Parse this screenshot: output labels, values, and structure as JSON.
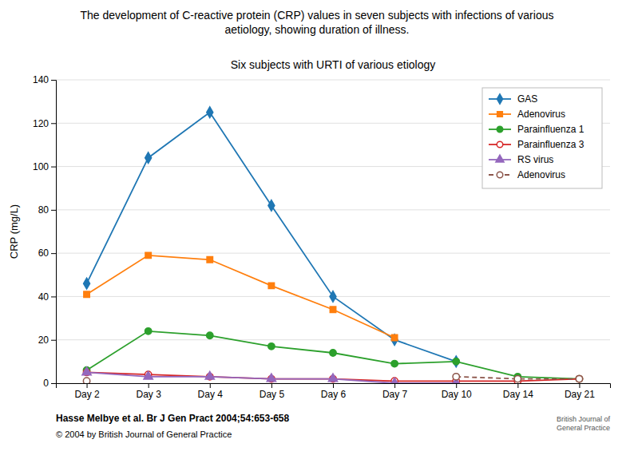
{
  "chart_data": {
    "type": "line",
    "title": "The development of C-reactive protein (CRP) values in seven subjects with infections of various\naetiology, showing duration of illness.",
    "subtitle": "Six subjects with URTI of various etiology",
    "ylabel": "CRP (mg/L)",
    "annotations": [
      "Hasse Melbye et al. Br J Gen Pract 2004;54:653-658",
      "© 2004 by British Journal of General Practice",
      "British Journal of\nGeneral Practice"
    ],
    "categories": [
      "Day 2",
      "Day 3",
      "Day 4",
      "Day 5",
      "Day 6",
      "Day 7",
      "Day 10",
      "Day 14",
      "Day 21"
    ],
    "ylim": [
      0,
      140
    ],
    "yticks": [
      0,
      20,
      40,
      60,
      80,
      100,
      120,
      140
    ],
    "grid": true,
    "legend": "upper-right",
    "series": [
      {
        "name": "GAS",
        "marker": "diamond",
        "line_style": "solid",
        "values": [
          46,
          104,
          125,
          82,
          40,
          20,
          10,
          null,
          null
        ]
      },
      {
        "name": "Adenovirus",
        "marker": "square",
        "line_style": "solid",
        "values": [
          41,
          59,
          57,
          45,
          34,
          21,
          null,
          null,
          null
        ]
      },
      {
        "name": "Parainfluenza 1",
        "marker": "circle",
        "line_style": "solid",
        "values": [
          6,
          24,
          22,
          17,
          14,
          9,
          10,
          3,
          2
        ]
      },
      {
        "name": "Parainfluenza 3",
        "marker": "circle-open",
        "line_style": "solid",
        "values": [
          5,
          4,
          3,
          2,
          2,
          1,
          1,
          1,
          2
        ]
      },
      {
        "name": "RS virus",
        "marker": "triangle",
        "line_style": "solid",
        "values": [
          5,
          3,
          3,
          2,
          2,
          0,
          0,
          null,
          null
        ]
      },
      {
        "name": "Adenovirus",
        "marker": "circle-open",
        "line_style": "dashed",
        "values": [
          1,
          null,
          null,
          null,
          null,
          null,
          3,
          2,
          2
        ]
      }
    ]
  }
}
